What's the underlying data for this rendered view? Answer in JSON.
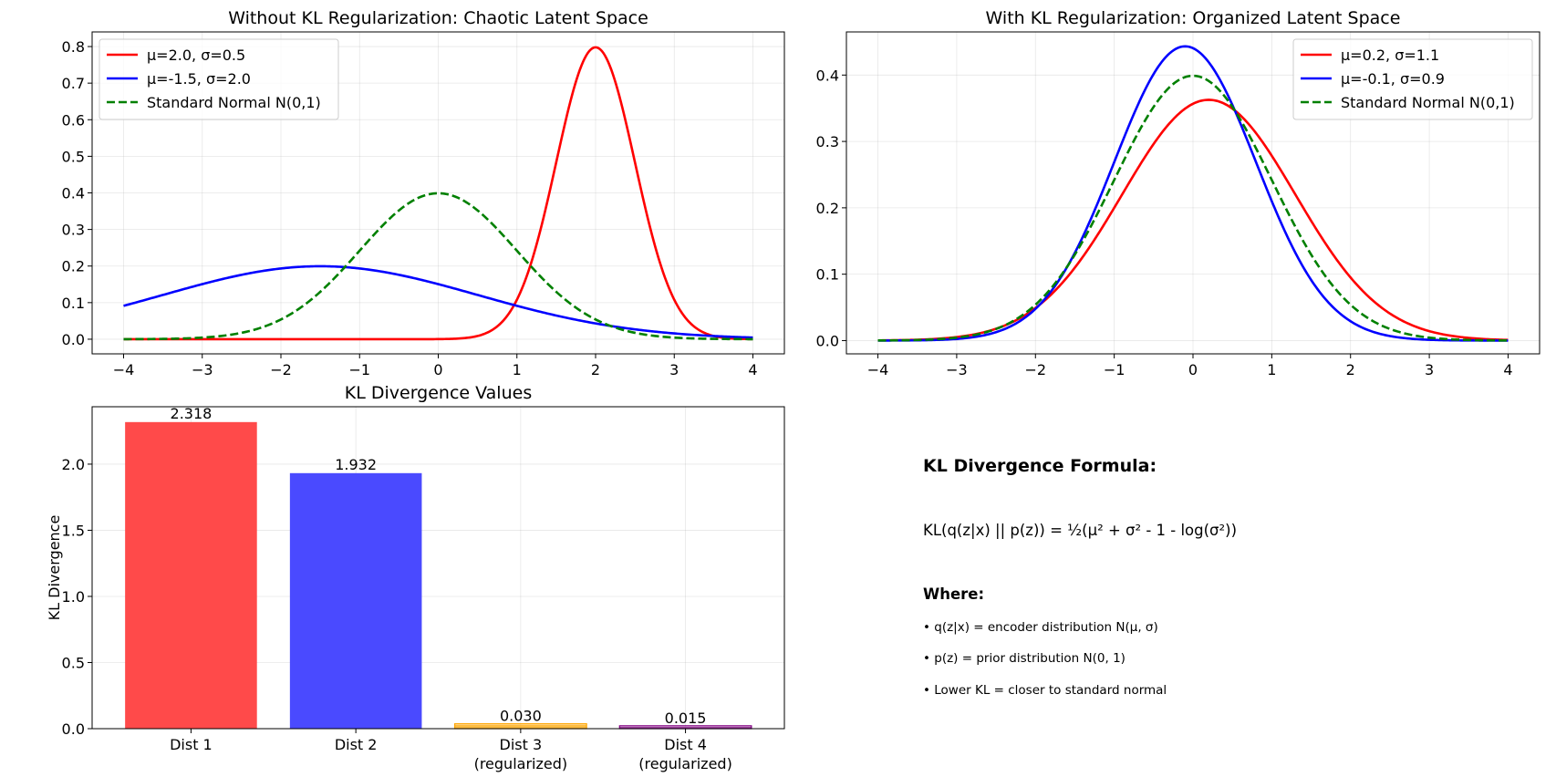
{
  "chart_data": [
    {
      "type": "line",
      "title": "Without KL Regularization: Chaotic Latent Space",
      "xlabel": "",
      "ylabel": "",
      "xlim": [
        -4.4,
        4.4
      ],
      "ylim": [
        -0.04,
        0.84
      ],
      "xticks": [
        "−4",
        "−3",
        "−2",
        "−1",
        "0",
        "1",
        "2",
        "3",
        "4"
      ],
      "yticks": [
        "0.0",
        "0.1",
        "0.2",
        "0.3",
        "0.4",
        "0.5",
        "0.6",
        "0.7",
        "0.8"
      ],
      "grid": true,
      "legend_position": "top-left",
      "series": [
        {
          "name": "μ=2.0, σ=0.5",
          "mu": 2.0,
          "sigma": 0.5,
          "color": "#ff0000",
          "dash": "solid"
        },
        {
          "name": "μ=-1.5, σ=2.0",
          "mu": -1.5,
          "sigma": 2.0,
          "color": "#0000ff",
          "dash": "solid"
        },
        {
          "name": "Standard Normal N(0,1)",
          "mu": 0.0,
          "sigma": 1.0,
          "color": "#008000",
          "dash": "dashed"
        }
      ]
    },
    {
      "type": "line",
      "title": "With KL Regularization: Organized Latent Space",
      "xlabel": "",
      "ylabel": "",
      "xlim": [
        -4.4,
        4.4
      ],
      "ylim": [
        -0.02,
        0.465
      ],
      "xticks": [
        "−4",
        "−3",
        "−2",
        "−1",
        "0",
        "1",
        "2",
        "3",
        "4"
      ],
      "yticks": [
        "0.0",
        "0.1",
        "0.2",
        "0.3",
        "0.4"
      ],
      "grid": true,
      "legend_position": "top-right",
      "series": [
        {
          "name": "μ=0.2, σ=1.1",
          "mu": 0.2,
          "sigma": 1.1,
          "color": "#ff0000",
          "dash": "solid"
        },
        {
          "name": "μ=-0.1, σ=0.9",
          "mu": -0.1,
          "sigma": 0.9,
          "color": "#0000ff",
          "dash": "solid"
        },
        {
          "name": "Standard Normal N(0,1)",
          "mu": 0.0,
          "sigma": 1.0,
          "color": "#008000",
          "dash": "dashed"
        }
      ]
    },
    {
      "type": "bar",
      "title": "KL Divergence Values",
      "xlabel": "",
      "ylabel": "KL Divergence",
      "ylim": [
        0,
        2.434
      ],
      "yticks": [
        "0.0",
        "0.5",
        "1.0",
        "1.5",
        "2.0"
      ],
      "grid": true,
      "categories": [
        [
          "Dist 1"
        ],
        [
          "Dist 2"
        ],
        [
          "Dist 3",
          "(regularized)"
        ],
        [
          "Dist 4",
          "(regularized)"
        ]
      ],
      "values": [
        2.318,
        1.932,
        0.03,
        0.015
      ],
      "value_labels": [
        "2.318",
        "1.932",
        "0.030",
        "0.015"
      ],
      "colors": [
        "#ff4a4a",
        "#4a4aff",
        "#ffa500",
        "#800080"
      ]
    }
  ],
  "formula_panel": {
    "title": "KL Divergence Formula:",
    "equation": "KL(q(z|x) || p(z)) = ½(μ² + σ² - 1 - log(σ²))",
    "where_label": "Where:",
    "items": [
      "• q(z|x) = encoder distribution N(μ, σ)",
      "• p(z) = prior distribution N(0, 1)",
      "• Lower KL = closer to standard normal"
    ]
  }
}
